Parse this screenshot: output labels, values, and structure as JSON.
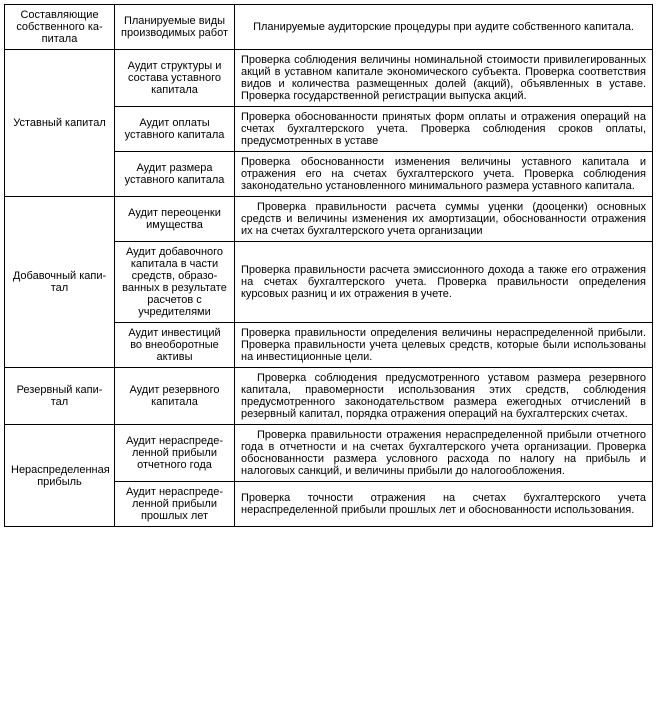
{
  "headers": {
    "col1": "Составляющие собственного ка­питала",
    "col2": "Планируемые ви­ды производимых работ",
    "col3": "Планируемые аудиторские процедуры при аудите собствен­ного капитала."
  },
  "rows": [
    {
      "group": "Уставный капитал",
      "rowspan": 3,
      "work": "Аудит структуры и состава уставного капитала",
      "procedure": "Проверка соблюдения величины номинальной стоимости привилегированных акций в уставном капитале экономиче­ского субъекта. Проверка соответствия видов и количества размещенных долей (акций), объявленных в уставе. Провер­ка государственной регистрации выпуска акций.",
      "indent": false
    },
    {
      "work": "Аудит оплаты уставного капитала",
      "procedure": "Проверка обоснованности принятых форм оплаты и отраже­ния операций на счетах бухгалтерского учета. Проверка со­блюдения сроков оплаты, предусмотренных в уставе",
      "indent": false
    },
    {
      "work": "Аудит размера уставного капитала",
      "procedure": "Проверка обоснованности изменения величины уставного капитала и отражения его на счетах бухгалтерского учета. Проверка соблюдения законодательно установленного мини­мального размера уставного капитала.",
      "indent": false
    },
    {
      "group": "Добавочный капи­тал",
      "rowspan": 3,
      "work": "Аудит переоценки имущества",
      "procedure": "Проверка правильности расчета суммы уценки (дооцен­ки) основных средств и величины изменения их амортизации, обоснованности отражения их на счетах бухгалтерского учета организации",
      "indent": true
    },
    {
      "work": "Аудит добавочного капитала в части средств, образо­ванных в результа­те расчетов с учредителями",
      "procedure": "Проверка правильности расчета эмиссионного дохода а так­же его отражения на счетах бухгалтерского учета. Проверка правильности определения курсовых разниц и их отражения в учете.",
      "indent": false
    },
    {
      "work": "Аудит инвестиций во внеоборотные активы",
      "procedure": "Проверка правильности определения величины нераспреде­ленной прибыли. Проверка правильности учета целевых средств, которые были использованы на инвестиционные це­ли.",
      "indent": false
    },
    {
      "group": "Резервный капи­тал",
      "rowspan": 1,
      "work": "Аудит резервного капитала",
      "procedure": "Проверка соблюдения предусмотренного уставом разме­ра резервного капитала, правомерности использования этих средств, соблюдения предусмотренного законодательством размера ежегодных отчислений в резервный капитал, поряд­ка отражения операций на бухгалтерских счетах.",
      "indent": true
    },
    {
      "group": "Нераспределенная прибыль",
      "rowspan": 2,
      "work": "Аудит нераспреде­ленной прибыли отчетного года",
      "procedure": "Проверка правильности отражения нераспределенной при­были отчетного года в отчетности и на счетах бухгалтерского учета организации. Проверка обоснованности размера услов­ного расхода по налогу на прибыль и налоговых санкций, и величины прибыли до налогообложения.",
      "indent": true
    },
    {
      "work": "Аудит нераспреде­ленной прибыли прошлых лет",
      "procedure": "Проверка точности отражения на счетах бухгалтерского учета нераспределенной прибыли прошлых лет и обоснованности использования.",
      "indent": false
    }
  ]
}
